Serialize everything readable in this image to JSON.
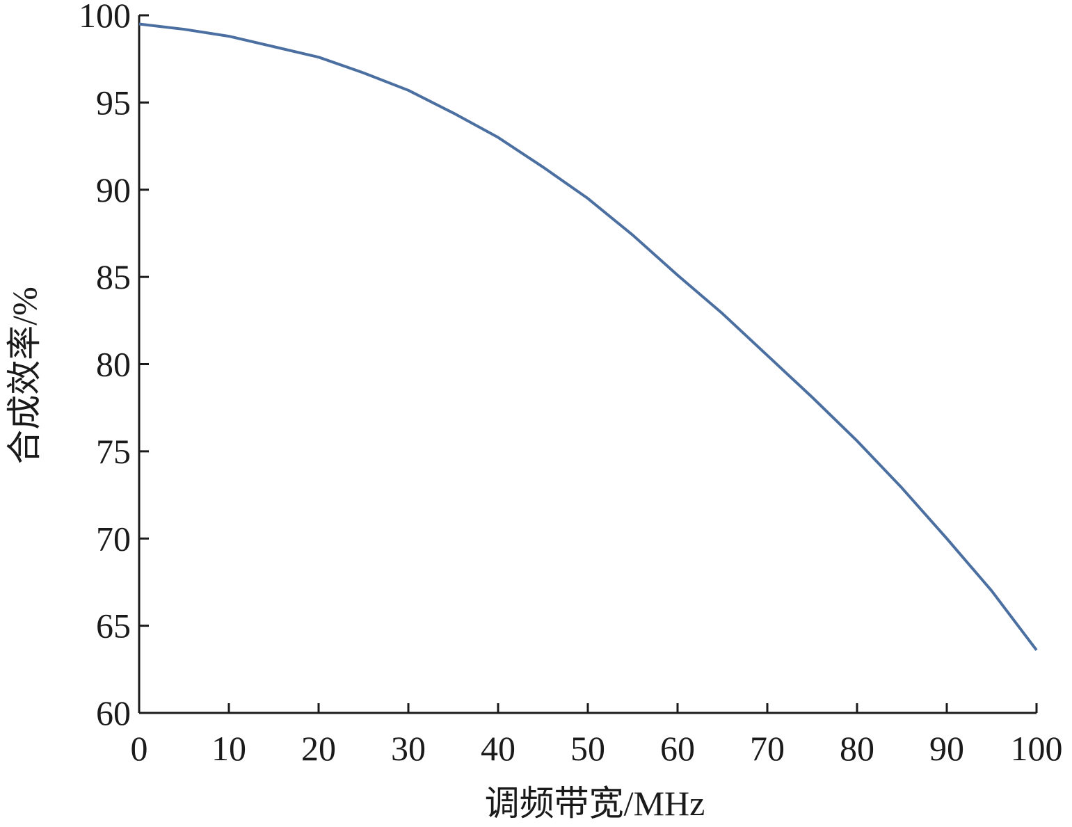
{
  "chart_data": {
    "type": "line",
    "xlabel": "调频带宽/MHz",
    "ylabel": "合成效率/%",
    "x": [
      0,
      5,
      10,
      15,
      20,
      25,
      30,
      35,
      40,
      45,
      50,
      55,
      60,
      65,
      70,
      75,
      80,
      85,
      90,
      95,
      100
    ],
    "series": [
      {
        "color": "#4a6fa0",
        "values": [
          99.5,
          99.2,
          98.8,
          98.2,
          97.6,
          96.7,
          95.7,
          94.4,
          93.0,
          91.3,
          89.5,
          87.4,
          85.1,
          82.9,
          80.5,
          78.1,
          75.6,
          72.9,
          70.0,
          67.0,
          63.6
        ]
      }
    ],
    "xlim": [
      0,
      100
    ],
    "xticks": [
      0,
      10,
      20,
      30,
      40,
      50,
      60,
      70,
      80,
      90,
      100
    ],
    "ylim": [
      60,
      100
    ],
    "yticks": [
      60,
      65,
      70,
      75,
      80,
      85,
      90,
      95,
      100
    ]
  }
}
